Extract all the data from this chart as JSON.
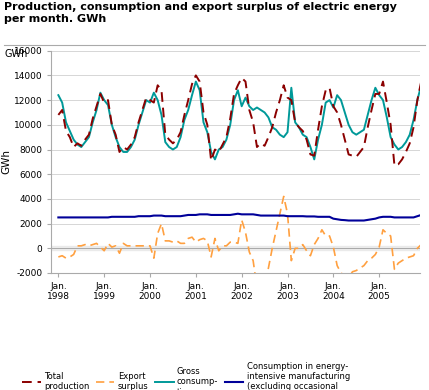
{
  "title": "Production, consumption and export surplus of electric energy\nper month. GWh",
  "ylabel": "GWh",
  "ylim": [
    -2000,
    16000
  ],
  "yticks": [
    -2000,
    0,
    2000,
    4000,
    6000,
    8000,
    10000,
    12000,
    14000,
    16000
  ],
  "total_production": [
    10800,
    11200,
    9500,
    9000,
    8200,
    8500,
    8300,
    8800,
    9200,
    10500,
    11500,
    12500,
    11800,
    12000,
    10000,
    9200,
    7800,
    8200,
    8000,
    8400,
    9000,
    10200,
    11200,
    12200,
    12000,
    11800,
    13200,
    12800,
    9200,
    8800,
    8500,
    8800,
    9400,
    10800,
    12000,
    13300,
    14000,
    13500,
    11000,
    10000,
    7100,
    8000,
    7800,
    8400,
    9000,
    10500,
    12500,
    13200,
    13800,
    13500,
    11200,
    10200,
    8200,
    8500,
    8300,
    9000,
    9800,
    11000,
    12000,
    13200,
    12200,
    12000,
    10200,
    9800,
    9500,
    8800,
    7600,
    7500,
    9600,
    11500,
    12800,
    13000,
    11500,
    11000,
    10000,
    8800,
    7600,
    7500,
    7400,
    7800,
    8200,
    9800,
    11200,
    12500,
    12500,
    13500,
    11800,
    10000,
    6700,
    6800,
    7200,
    7800,
    8500,
    9800,
    12000,
    13500,
    13200,
    12800,
    12200,
    10000,
    9500,
    9200,
    9000,
    9500,
    9800
  ],
  "gross_consumption": [
    12400,
    11800,
    10200,
    9500,
    8800,
    8400,
    8200,
    8600,
    9000,
    10200,
    11200,
    12600,
    12000,
    11600,
    10000,
    9000,
    8200,
    7800,
    7800,
    8200,
    8800,
    10000,
    11000,
    12000,
    11800,
    12600,
    12000,
    10800,
    8600,
    8200,
    8000,
    8200,
    9000,
    10400,
    11200,
    12400,
    13500,
    12800,
    10200,
    9400,
    7800,
    7200,
    8000,
    8200,
    8800,
    10000,
    12000,
    12800,
    11500,
    12200,
    11500,
    11200,
    11400,
    11200,
    11000,
    10600,
    9800,
    9600,
    9200,
    9000,
    9400,
    13000,
    10200,
    9800,
    9200,
    9000,
    8200,
    7200,
    8800,
    10000,
    11800,
    12000,
    11400,
    12400,
    12000,
    11000,
    10000,
    9400,
    9200,
    9400,
    9600,
    10800,
    12000,
    13000,
    12400,
    12000,
    10600,
    9000,
    8400,
    8000,
    8200,
    8600,
    9200,
    10400,
    12000,
    13200,
    12800,
    12000,
    10500,
    9200,
    8400,
    8600,
    8200,
    8800,
    8800
  ],
  "export_surplus": [
    -700,
    -600,
    -800,
    -700,
    -500,
    200,
    200,
    300,
    200,
    300,
    400,
    100,
    -200,
    400,
    100,
    200,
    -400,
    400,
    200,
    200,
    200,
    200,
    200,
    200,
    200,
    -800,
    1200,
    2000,
    600,
    600,
    500,
    600,
    400,
    400,
    800,
    900,
    500,
    700,
    800,
    600,
    -700,
    800,
    -200,
    200,
    200,
    500,
    500,
    400,
    2300,
    1300,
    -300,
    -1000,
    -3200,
    -2700,
    -2700,
    -1600,
    0,
    1400,
    2800,
    4200,
    2800,
    -1000,
    0,
    0,
    300,
    -200,
    -600,
    300,
    800,
    1500,
    1000,
    1000,
    100,
    -1400,
    -2000,
    -2200,
    -2400,
    -1900,
    -1800,
    -1600,
    -1400,
    -1000,
    -800,
    -500,
    100,
    1500,
    1200,
    1000,
    -1700,
    -1200,
    -1000,
    -800,
    -700,
    -600,
    0,
    300,
    400,
    800,
    1700,
    800,
    1100,
    600,
    800,
    700,
    1000
  ],
  "energy_intensive": [
    2500,
    2500,
    2500,
    2500,
    2500,
    2500,
    2500,
    2500,
    2500,
    2500,
    2500,
    2500,
    2500,
    2500,
    2550,
    2550,
    2550,
    2550,
    2550,
    2550,
    2550,
    2600,
    2600,
    2600,
    2600,
    2650,
    2650,
    2650,
    2600,
    2600,
    2600,
    2600,
    2600,
    2650,
    2700,
    2700,
    2700,
    2750,
    2750,
    2750,
    2700,
    2700,
    2700,
    2700,
    2700,
    2700,
    2750,
    2800,
    2750,
    2750,
    2750,
    2750,
    2700,
    2650,
    2650,
    2650,
    2650,
    2650,
    2650,
    2650,
    2600,
    2600,
    2600,
    2600,
    2600,
    2580,
    2580,
    2580,
    2550,
    2550,
    2550,
    2550,
    2400,
    2350,
    2300,
    2280,
    2250,
    2250,
    2250,
    2250,
    2250,
    2300,
    2350,
    2400,
    2500,
    2550,
    2550,
    2550,
    2500,
    2500,
    2500,
    2500,
    2500,
    2500,
    2600,
    2700,
    2750,
    2800,
    2800,
    2750,
    2750,
    2750,
    2750,
    2750,
    2750
  ],
  "colors": {
    "total_production": "#8B0000",
    "export_surplus": "#FFA040",
    "gross_consumption": "#009999",
    "energy_intensive": "#000099"
  },
  "background_color": "#FFFFFF",
  "grid_color": "#D0D0D0",
  "zero_band_color": "#E8E8E8"
}
